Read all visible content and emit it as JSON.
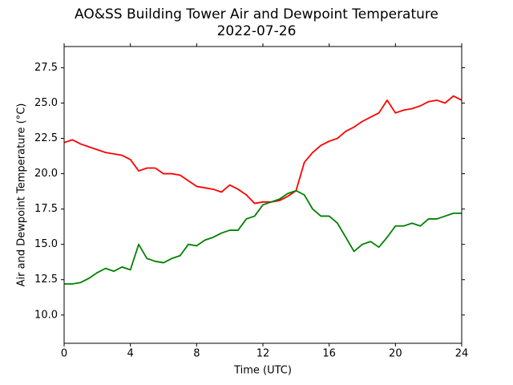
{
  "chart_data": {
    "type": "line",
    "title": "AO&SS Building Tower Air and Dewpoint Temperature",
    "subtitle": "2022-07-26",
    "x_label": "Time (UTC)",
    "y_label": "Air and Dewpoint Temperature (°C)",
    "x": [
      0,
      0.5,
      1,
      1.5,
      2,
      2.5,
      3,
      3.5,
      4,
      4.5,
      5,
      5.5,
      6,
      6.5,
      7,
      7.5,
      8,
      8.5,
      9,
      9.5,
      10,
      10.5,
      11,
      11.5,
      12,
      12.5,
      13,
      13.5,
      14,
      14.5,
      15,
      15.5,
      16,
      16.5,
      17,
      17.5,
      18,
      18.5,
      19,
      19.5,
      20,
      20.5,
      21,
      21.5,
      22,
      22.5,
      23,
      23.5,
      24
    ],
    "series": [
      {
        "color": "#ff0000",
        "values": [
          22.2,
          22.4,
          22.1,
          21.9,
          21.7,
          21.5,
          21.4,
          21.3,
          21.0,
          20.2,
          20.4,
          20.4,
          20.0,
          20.0,
          19.9,
          19.5,
          19.1,
          19.0,
          18.9,
          18.7,
          19.2,
          18.9,
          18.5,
          17.9,
          18.0,
          18.0,
          18.1,
          18.4,
          18.8,
          20.8,
          21.5,
          22.0,
          22.3,
          22.5,
          23.0,
          23.3,
          23.7,
          24.0,
          24.3,
          25.2,
          24.3,
          24.5,
          24.6,
          24.8,
          25.1,
          25.2,
          25.0,
          25.5,
          25.2
        ]
      },
      {
        "color": "#008000",
        "values": [
          12.2,
          12.2,
          12.3,
          12.6,
          13.0,
          13.3,
          13.1,
          13.4,
          13.2,
          15.0,
          14.0,
          13.8,
          13.7,
          14.0,
          14.2,
          15.0,
          14.9,
          15.3,
          15.5,
          15.8,
          16.0,
          16.0,
          16.8,
          17.0,
          17.8,
          18.0,
          18.2,
          18.6,
          18.8,
          18.5,
          17.5,
          17.0,
          17.0,
          16.5,
          15.5,
          14.5,
          15.0,
          15.2,
          14.8,
          15.5,
          16.3,
          16.3,
          16.5,
          16.3,
          16.8,
          16.8,
          17.0,
          17.2,
          17.2
        ]
      }
    ],
    "xlim": [
      0,
      24
    ],
    "xticks": [
      0,
      4,
      8,
      12,
      16,
      20,
      24
    ],
    "ylim": [
      8,
      29
    ],
    "yticks": [
      {
        "value": 10,
        "label": "10.0"
      },
      12.5,
      {
        "value": 15,
        "label": "15.0"
      },
      17.5,
      {
        "value": 20,
        "label": "20.0"
      },
      22.5,
      {
        "value": 25,
        "label": "25.0"
      },
      27.5
    ],
    "grid": false
  }
}
